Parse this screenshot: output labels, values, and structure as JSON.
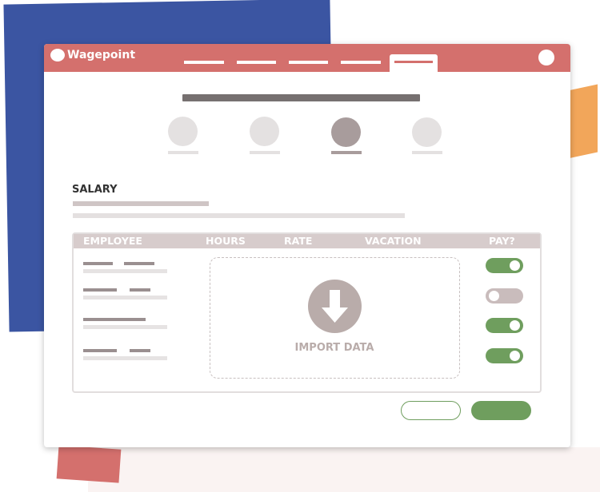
{
  "app": {
    "logo_text": "Wagepoint"
  },
  "colors": {
    "header": "#d4706d",
    "accent_green": "#6f9e5e",
    "toggle_off": "#c9bcbc",
    "blob_blue": "#3b55a2",
    "blob_orange": "#f2a65a"
  },
  "nav": {
    "tab_count": 5,
    "active_tab": 5
  },
  "steps": {
    "count": 4,
    "active": 3
  },
  "section": {
    "title": "SALARY"
  },
  "table": {
    "columns": [
      "EMPLOYEE",
      "HOURS",
      "RATE",
      "VACATION",
      "PAY?"
    ],
    "rows": [
      {
        "pay": true
      },
      {
        "pay": false
      },
      {
        "pay": true
      },
      {
        "pay": true
      }
    ]
  },
  "import": {
    "label": "IMPORT DATA",
    "icon": "download-arrow-icon"
  }
}
